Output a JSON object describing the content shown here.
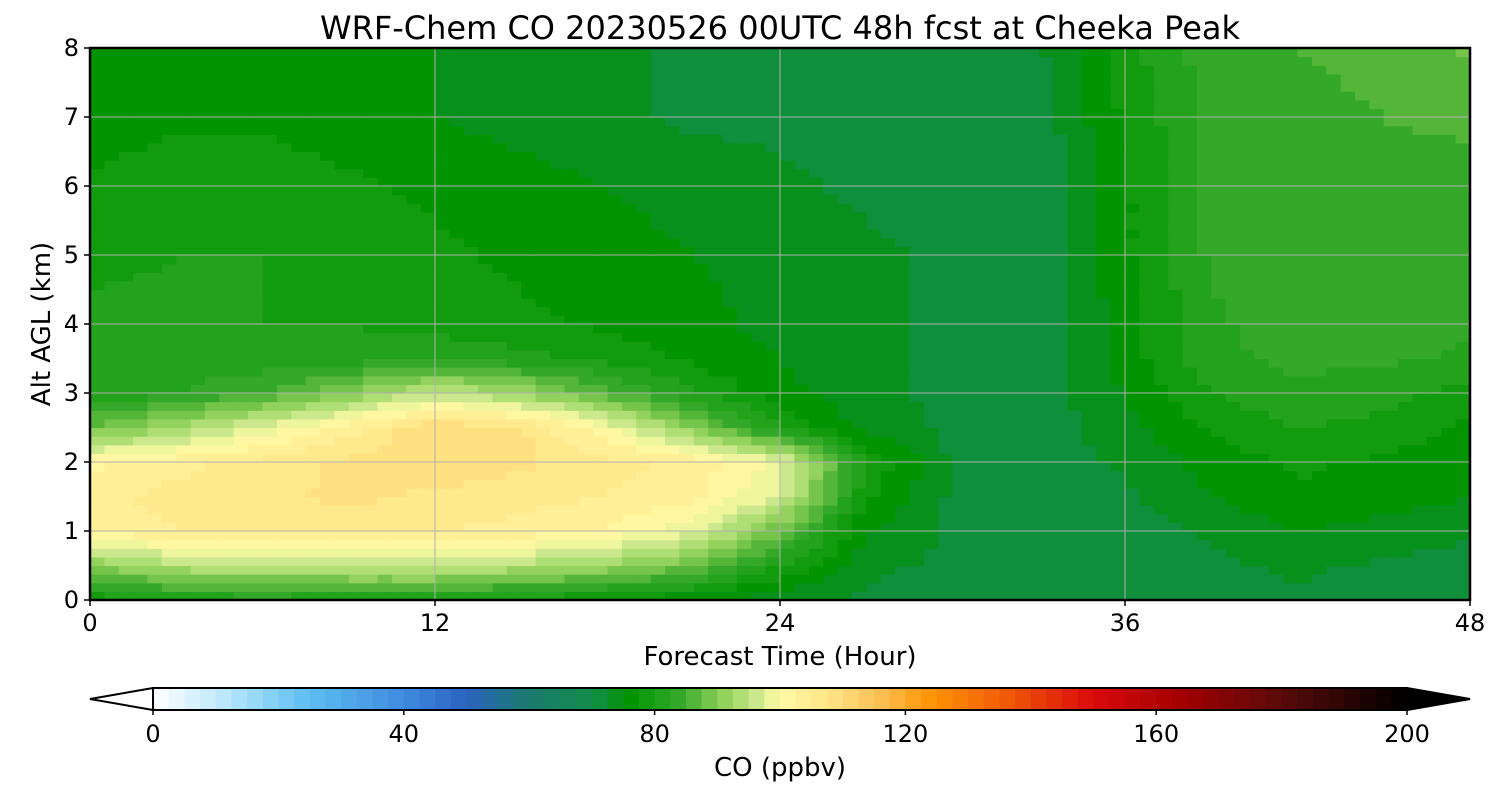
{
  "chart_data": {
    "type": "heatmap",
    "title": "WRF-Chem CO  20230526 00UTC 48h fcst at Cheeka Peak",
    "xlabel": "Forecast Time (Hour)",
    "ylabel": "Alt AGL (km)",
    "xlim": [
      0,
      48
    ],
    "ylim": [
      0,
      8
    ],
    "xticks": [
      "0",
      "12",
      "24",
      "36",
      "48"
    ],
    "yticks": [
      "0",
      "1",
      "2",
      "3",
      "4",
      "5",
      "6",
      "7",
      "8"
    ],
    "grid": true,
    "x": [
      0,
      3,
      6,
      9,
      12,
      15,
      18,
      21,
      24,
      27,
      30,
      33,
      36,
      39,
      42,
      45,
      48
    ],
    "y": [
      0,
      0.5,
      1,
      1.5,
      2,
      2.5,
      3,
      3.5,
      4,
      5,
      6,
      7,
      8
    ],
    "z": [
      [
        78,
        80,
        81,
        80,
        80,
        79,
        77,
        75,
        73,
        72,
        71,
        70,
        70,
        71,
        72,
        71,
        70
      ],
      [
        90,
        94,
        95,
        96,
        96,
        94,
        92,
        88,
        80,
        73,
        72,
        71,
        71,
        72,
        73,
        72,
        71
      ],
      [
        103,
        105,
        106,
        106,
        105,
        104,
        102,
        98,
        88,
        75,
        72,
        71,
        71,
        73,
        75,
        74,
        73
      ],
      [
        104,
        106,
        107,
        108,
        107,
        106,
        105,
        103,
        97,
        78,
        72,
        71,
        72,
        75,
        77,
        76,
        75
      ],
      [
        102,
        104,
        106,
        108,
        109,
        108,
        106,
        104,
        99,
        80,
        72,
        71,
        73,
        76,
        78,
        77,
        76
      ],
      [
        88,
        93,
        98,
        104,
        110,
        108,
        100,
        90,
        80,
        74,
        72,
        71,
        74,
        78,
        80,
        79,
        77
      ],
      [
        80,
        82,
        85,
        90,
        96,
        92,
        86,
        80,
        76,
        73,
        72,
        71,
        75,
        80,
        82,
        81,
        79
      ],
      [
        82,
        82,
        81,
        81,
        82,
        81,
        79,
        77,
        75,
        73,
        72,
        71,
        76,
        82,
        83,
        83,
        82
      ],
      [
        81,
        81,
        80,
        80,
        79,
        78,
        77,
        76,
        74,
        73,
        72,
        71,
        76,
        82,
        84,
        84,
        83
      ],
      [
        79,
        80,
        80,
        79,
        78,
        77,
        76,
        75,
        74,
        73,
        72,
        71,
        77,
        83,
        85,
        84,
        83
      ],
      [
        78,
        79,
        79,
        78,
        77,
        76,
        75,
        74,
        73,
        72,
        71,
        70,
        77,
        83,
        84,
        84,
        83
      ],
      [
        76,
        77,
        77,
        76,
        75,
        74,
        73,
        72,
        72,
        71,
        71,
        71,
        78,
        83,
        84,
        85,
        86
      ],
      [
        76,
        76,
        76,
        75,
        75,
        74,
        73,
        72,
        71,
        71,
        71,
        72,
        79,
        84,
        85,
        86,
        88
      ]
    ],
    "colorbar": {
      "label": "CO  (ppbv)",
      "min": 0,
      "max": 200,
      "ticks": [
        "0",
        "40",
        "80",
        "120",
        "160",
        "200"
      ],
      "extend": "both",
      "levels": 80,
      "colorstops": [
        {
          "v": 0,
          "color": "#ffffff"
        },
        {
          "v": 12,
          "color": "#b7e6fb"
        },
        {
          "v": 25,
          "color": "#5cbdf2"
        },
        {
          "v": 40,
          "color": "#3e8be0"
        },
        {
          "v": 50,
          "color": "#2b63c0"
        },
        {
          "v": 60,
          "color": "#1b7b6e"
        },
        {
          "v": 70,
          "color": "#138c4b"
        },
        {
          "v": 76,
          "color": "#009400"
        },
        {
          "v": 84,
          "color": "#36a92a"
        },
        {
          "v": 90,
          "color": "#86cc52"
        },
        {
          "v": 96,
          "color": "#c8e88a"
        },
        {
          "v": 100,
          "color": "#fffba6"
        },
        {
          "v": 108,
          "color": "#ffe486"
        },
        {
          "v": 116,
          "color": "#ffbf52"
        },
        {
          "v": 124,
          "color": "#ff9505"
        },
        {
          "v": 136,
          "color": "#f05a06"
        },
        {
          "v": 150,
          "color": "#d90a0a"
        },
        {
          "v": 164,
          "color": "#a30000"
        },
        {
          "v": 180,
          "color": "#5a0a0a"
        },
        {
          "v": 200,
          "color": "#000000"
        }
      ]
    }
  }
}
